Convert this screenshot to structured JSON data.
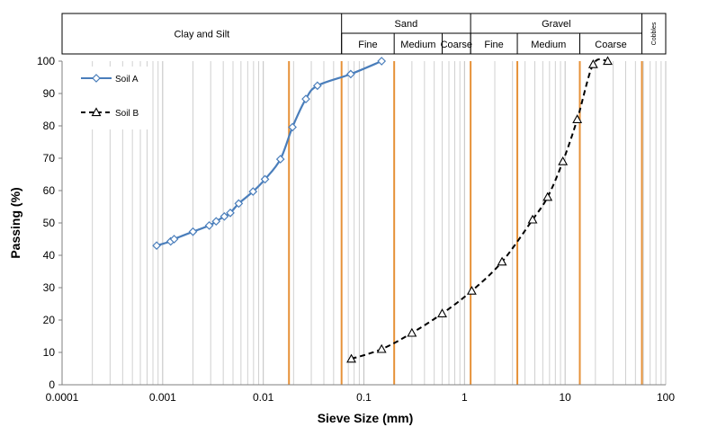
{
  "chart_data": {
    "type": "line",
    "xscale": "log",
    "xlim": [
      0.0001,
      100
    ],
    "ylim": [
      0,
      100
    ],
    "xlabel": "Sieve Size (mm)",
    "ylabel": "Passing (%)",
    "xticks": [
      {
        "value": 0.0001,
        "label": "0.0001"
      },
      {
        "value": 0.001,
        "label": "0.001"
      },
      {
        "value": 0.01,
        "label": "0.01"
      },
      {
        "value": 0.1,
        "label": "0.1"
      },
      {
        "value": 1,
        "label": "1"
      },
      {
        "value": 10,
        "label": "10"
      },
      {
        "value": 100,
        "label": "100"
      }
    ],
    "yticks": [
      {
        "value": 0,
        "label": "0"
      },
      {
        "value": 10,
        "label": "10"
      },
      {
        "value": 20,
        "label": "20"
      },
      {
        "value": 30,
        "label": "30"
      },
      {
        "value": 40,
        "label": "40"
      },
      {
        "value": 50,
        "label": "50"
      },
      {
        "value": 60,
        "label": "60"
      },
      {
        "value": 70,
        "label": "70"
      },
      {
        "value": 80,
        "label": "80"
      },
      {
        "value": 90,
        "label": "90"
      },
      {
        "value": 100,
        "label": "100"
      }
    ],
    "grid": true,
    "legend_position": "top-left",
    "series": [
      {
        "name": "Soil A",
        "color": "#4a7ebb",
        "line": "solid",
        "marker": "diamond",
        "x": [
          0.00087,
          0.0012,
          0.0013,
          0.002,
          0.0029,
          0.0034,
          0.0041,
          0.0047,
          0.0057,
          0.0079,
          0.0104,
          0.0148,
          0.0195,
          0.0265,
          0.0345,
          0.074,
          0.15
        ],
        "y": [
          43,
          44.3,
          45,
          47.3,
          49.2,
          50.5,
          52,
          53.1,
          56,
          59.7,
          63.5,
          69.7,
          79.6,
          88.3,
          92.4,
          96,
          100
        ]
      },
      {
        "name": "Soil B",
        "color": "#000000",
        "line": "dashed",
        "marker": "triangle",
        "x": [
          0.075,
          0.15,
          0.3,
          0.6,
          1.18,
          2.36,
          4.75,
          6.7,
          9.5,
          13.2,
          19,
          26.5
        ],
        "y": [
          8,
          11,
          16,
          22,
          29,
          38,
          51,
          58,
          69,
          82,
          99,
          100
        ]
      }
    ],
    "boundary_lines": {
      "color": "#e69138",
      "values": [
        0.018,
        0.06,
        0.2,
        1.15,
        3.35,
        14,
        58
      ]
    },
    "classification": {
      "groups": [
        {
          "label": "Clay and Silt",
          "from": 0.0001,
          "to": 0.06
        },
        {
          "label": "Sand",
          "from": 0.06,
          "to": 1.15
        },
        {
          "label": "Gravel",
          "from": 1.15,
          "to": 58
        },
        {
          "label": "Cobbles",
          "from": 58,
          "to": 100
        }
      ],
      "subgroups": [
        {
          "label": "Fine",
          "from": 0.06,
          "to": 0.2
        },
        {
          "label": "Medium",
          "from": 0.2,
          "to": 0.6
        },
        {
          "label": "Coarse",
          "from": 0.6,
          "to": 1.15
        },
        {
          "label": "Fine",
          "from": 1.15,
          "to": 3.35
        },
        {
          "label": "Medium",
          "from": 3.35,
          "to": 14
        },
        {
          "label": "Coarse",
          "from": 14,
          "to": 58
        }
      ]
    }
  }
}
